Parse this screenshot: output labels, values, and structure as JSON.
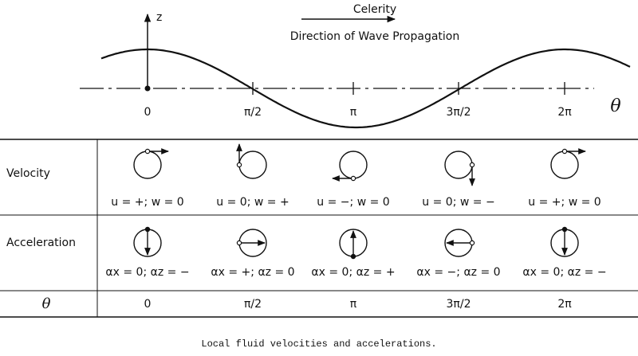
{
  "wave": {
    "z_label": "z",
    "celerity": "Celerity",
    "direction": "Direction of Wave Propagation",
    "phase_labels": [
      "0",
      "π/2",
      "π",
      "3π/2",
      "2π"
    ],
    "theta": "θ"
  },
  "table": {
    "rows": [
      {
        "label": "Velocity",
        "cells": [
          "u = +; w = 0",
          "u = 0; w = +",
          "u = −; w = 0",
          "u = 0; w = −",
          "u = +; w = 0"
        ]
      },
      {
        "label": "Acceleration",
        "cells": [
          "αx = 0; αz = −",
          "αx = +; αz = 0",
          "αx = 0; αz = +",
          "αx = −; αz = 0",
          "αx = 0; αz = −"
        ]
      },
      {
        "label": "θ",
        "cells": [
          "0",
          "π/2",
          "π",
          "3π/2",
          "2π"
        ]
      }
    ]
  },
  "caption": "Local fluid velocities and accelerations."
}
